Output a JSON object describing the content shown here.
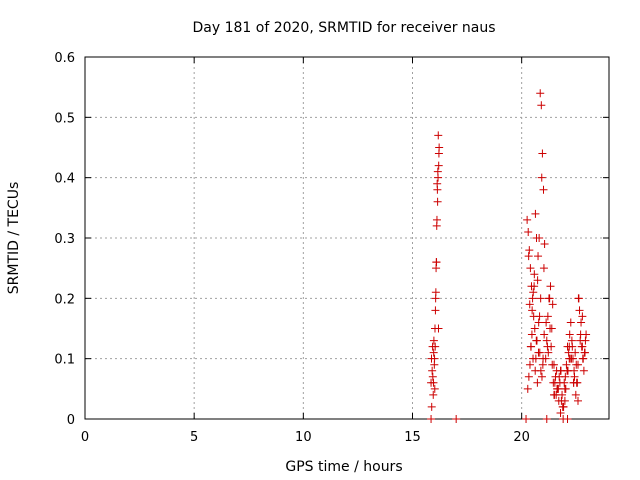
{
  "chart_data": {
    "type": "scatter",
    "title": "Day 181 of 2020, SRMTID for receiver naus",
    "xlabel": "GPS time / hours",
    "ylabel": "SRMTID / TECUs",
    "xlim": [
      0,
      24
    ],
    "ylim": [
      0,
      0.6
    ],
    "xticks": [
      0,
      5,
      10,
      15,
      20
    ],
    "yticks": [
      0,
      0.1,
      0.2,
      0.3,
      0.4,
      0.5,
      0.6
    ],
    "grid": true,
    "legend": "none",
    "marker": "plus",
    "color": "#cc0000",
    "series": [
      {
        "x": [
          15.85,
          15.87,
          15.9,
          15.92,
          15.95,
          15.97,
          16.0,
          15.88,
          15.93,
          15.98,
          16.02,
          16.05,
          16.07,
          16.1,
          16.12,
          16.15,
          16.17,
          16.2,
          16.22,
          16.03,
          16.08,
          16.13,
          16.18,
          16.06,
          16.11,
          16.16,
          16.21,
          16.09,
          16.14,
          16.19,
          15.96,
          16.01,
          16.04,
          20.25,
          20.3,
          20.35,
          20.4,
          20.45,
          20.5,
          20.55,
          20.6,
          20.65,
          20.7,
          20.75,
          20.8,
          20.85,
          20.9,
          20.95,
          21.0,
          21.05,
          20.28,
          20.33,
          20.38,
          20.43,
          20.48,
          20.53,
          20.58,
          20.63,
          20.68,
          20.73,
          20.78,
          20.83,
          20.88,
          20.93,
          20.98,
          21.03,
          20.32,
          20.42,
          20.52,
          20.62,
          20.72,
          20.82,
          20.92,
          21.02,
          20.37,
          20.47,
          20.57,
          20.67,
          20.77,
          20.87,
          20.97,
          21.1,
          21.15,
          21.2,
          21.25,
          21.3,
          21.35,
          21.4,
          21.45,
          21.5,
          21.55,
          21.6,
          21.65,
          21.7,
          21.75,
          21.8,
          21.85,
          21.9,
          21.95,
          22.0,
          22.05,
          22.1,
          22.15,
          22.2,
          22.25,
          22.3,
          22.35,
          22.4,
          22.45,
          22.5,
          22.55,
          22.6,
          22.65,
          22.7,
          22.75,
          22.8,
          22.85,
          22.9,
          22.95,
          21.12,
          21.22,
          21.32,
          21.42,
          21.52,
          21.62,
          21.72,
          21.82,
          21.92,
          22.02,
          22.12,
          22.22,
          22.32,
          22.42,
          22.52,
          22.62,
          22.72,
          22.82,
          22.92,
          21.18,
          21.28,
          21.38,
          21.48,
          21.58,
          21.68,
          21.78,
          21.88,
          21.98,
          22.08,
          22.18,
          22.28,
          22.38,
          22.48,
          22.58,
          22.68,
          22.78,
          22.88,
          21.48,
          21.78,
          21.98,
          22.18,
          22.38,
          22.58,
          22.78,
          15.85,
          17.0,
          20.2,
          21.15,
          21.9,
          22.1
        ],
        "y": [
          0.06,
          0.1,
          0.08,
          0.12,
          0.04,
          0.11,
          0.09,
          0.02,
          0.07,
          0.13,
          0.05,
          0.18,
          0.21,
          0.26,
          0.33,
          0.36,
          0.4,
          0.42,
          0.45,
          0.15,
          0.25,
          0.39,
          0.47,
          0.2,
          0.32,
          0.41,
          0.44,
          0.26,
          0.38,
          0.15,
          0.06,
          0.1,
          0.12,
          0.33,
          0.31,
          0.28,
          0.25,
          0.22,
          0.2,
          0.17,
          0.15,
          0.1,
          0.13,
          0.27,
          0.3,
          0.54,
          0.52,
          0.44,
          0.38,
          0.29,
          0.05,
          0.07,
          0.09,
          0.12,
          0.18,
          0.21,
          0.24,
          0.34,
          0.3,
          0.23,
          0.16,
          0.11,
          0.08,
          0.07,
          0.1,
          0.14,
          0.27,
          0.12,
          0.1,
          0.08,
          0.06,
          0.17,
          0.4,
          0.25,
          0.19,
          0.14,
          0.22,
          0.13,
          0.11,
          0.2,
          0.09,
          0.1,
          0.13,
          0.17,
          0.2,
          0.15,
          0.12,
          0.09,
          0.06,
          0.04,
          0.07,
          0.08,
          0.05,
          0.03,
          0.06,
          0.08,
          0.04,
          0.02,
          0.06,
          0.07,
          0.09,
          0.12,
          0.11,
          0.14,
          0.16,
          0.13,
          0.1,
          0.08,
          0.11,
          0.09,
          0.06,
          0.2,
          0.18,
          0.14,
          0.12,
          0.1,
          0.08,
          0.11,
          0.14,
          0.16,
          0.11,
          0.22,
          0.19,
          0.06,
          0.05,
          0.07,
          0.03,
          0.02,
          0.05,
          0.08,
          0.1,
          0.12,
          0.07,
          0.06,
          0.2,
          0.16,
          0.1,
          0.13,
          0.12,
          0.2,
          0.15,
          0.09,
          0.04,
          0.05,
          0.01,
          0.02,
          0.03,
          0.08,
          0.12,
          0.1,
          0.06,
          0.04,
          0.09,
          0.13,
          0.17,
          0.11,
          0.04,
          0.08,
          0.05,
          0.1,
          0.06,
          0.03,
          0.12,
          0,
          0,
          0,
          0,
          0,
          0
        ]
      }
    ]
  }
}
